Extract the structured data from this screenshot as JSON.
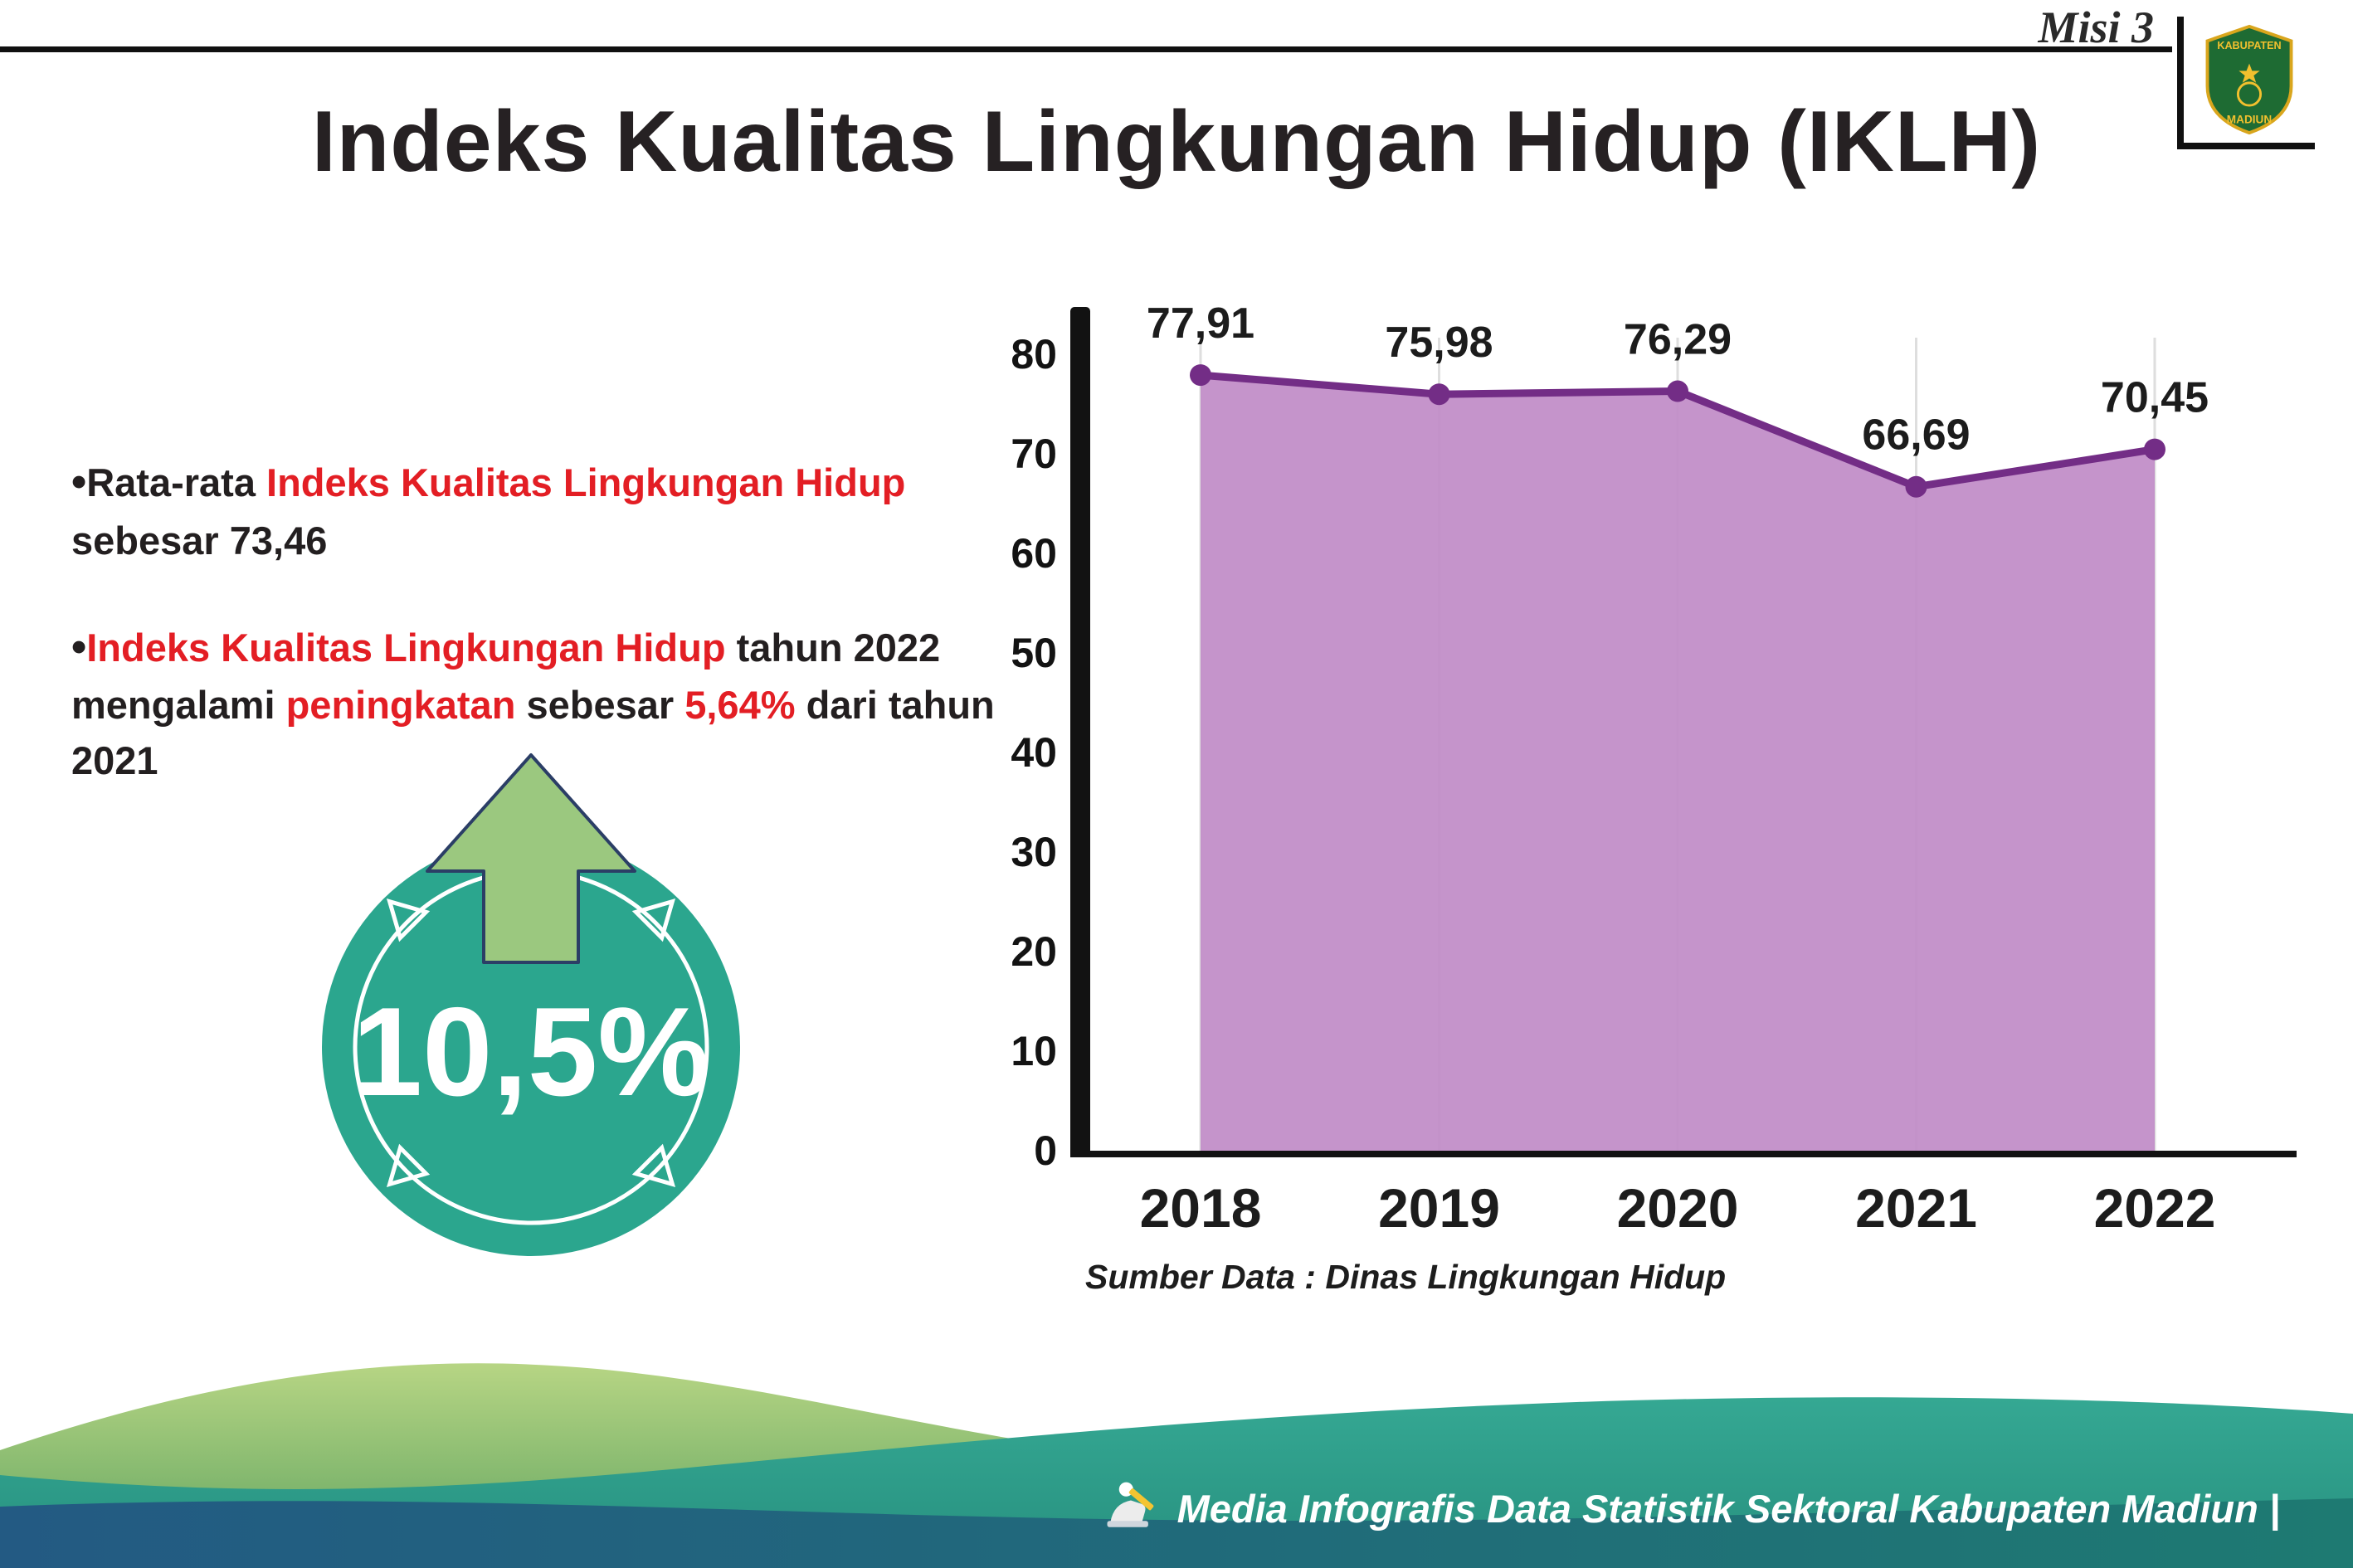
{
  "colors": {
    "red": "#e31e24",
    "dark_text": "#231f20",
    "purple_line": "#732d86",
    "purple_fill": "#c08bc7",
    "teal_circle": "#2ba68e",
    "arrow_green": "#9bc87f",
    "footer_green": "#76b163",
    "footer_teal": "#2f9c8b",
    "footer_dark": "#1e6f7d"
  },
  "header": {
    "misi_label": "Misi 3",
    "title": "Indeks Kualitas Lingkungan Hidup (IKLH)",
    "logo": {
      "line1": "KABUPATEN",
      "line2": "MADIUN"
    }
  },
  "bullets": {
    "marker": "•",
    "item1": {
      "seg1": "Rata-rata ",
      "seg2": "Indeks Kualitas Lingkungan Hidup",
      "seg3": " sebesar 73,46"
    },
    "item2": {
      "seg1": "Indeks Kualitas Lingkungan Hidup",
      "seg2": " tahun 2022 mengalami ",
      "seg3": "peningkatan",
      "seg4": " sebesar ",
      "seg5": "5,64%",
      "seg6": " dari tahun 2021"
    }
  },
  "badge": {
    "value": "10,5%"
  },
  "chart_data": {
    "type": "area",
    "title": "",
    "categories": [
      "2018",
      "2019",
      "2020",
      "2021",
      "2022"
    ],
    "values": [
      77.91,
      75.98,
      76.29,
      66.69,
      70.45
    ],
    "value_labels": [
      "77,91",
      "75,98",
      "76,29",
      "66,69",
      "70,45"
    ],
    "ylim": [
      0,
      80
    ],
    "yticks": [
      0,
      10,
      20,
      30,
      40,
      50,
      60,
      70,
      80
    ],
    "grid": "vertical-light",
    "legend": "none",
    "source": "Sumber Data : Dinas Lingkungan Hidup"
  },
  "footer": {
    "credit": "Media Infografis Data Statistik Sektoral Kabupaten Madiun |"
  }
}
